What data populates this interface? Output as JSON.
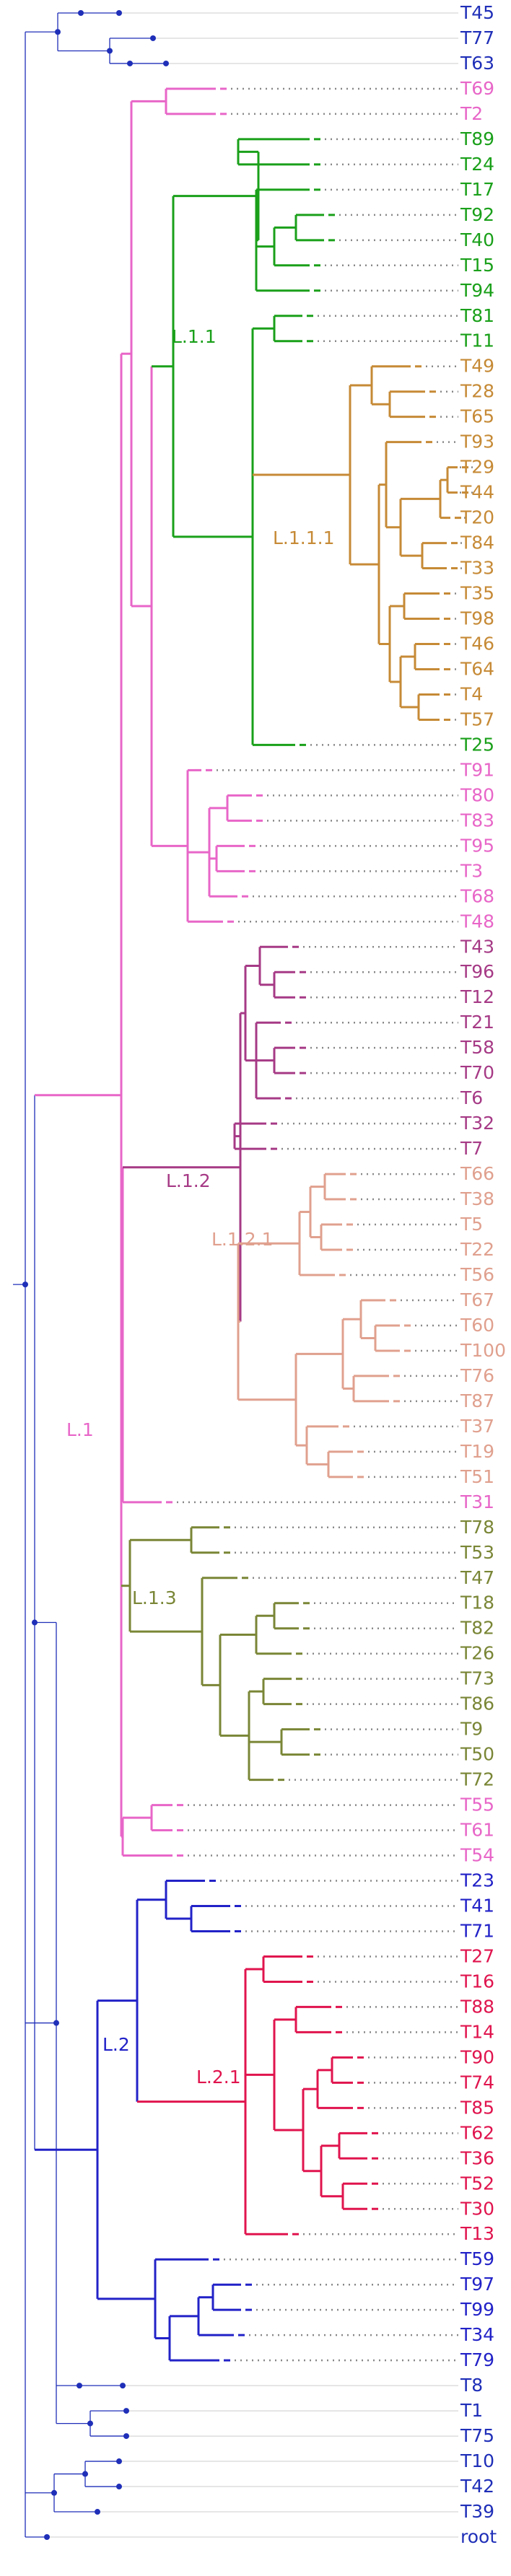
{
  "clade_colors": {
    "root": "#1f2fb8",
    "L.1": "#e866c8",
    "L.1.1": "#1aa01a",
    "L.1.1.1": "#c68a36",
    "L.1.2": "#a63a86",
    "L.1.2.1": "#e0a08e",
    "L.1.3": "#7a8636",
    "L.2": "#2222c8",
    "L.2.1": "#e0144e"
  },
  "clade_labels": [
    "L.1",
    "L.1.1",
    "L.1.1.1",
    "L.1.2",
    "L.1.2.1",
    "L.1.3",
    "L.2",
    "L.2.1"
  ],
  "tips": [
    {
      "name": "T45",
      "clade": "root"
    },
    {
      "name": "T77",
      "clade": "root"
    },
    {
      "name": "T63",
      "clade": "root"
    },
    {
      "name": "T69",
      "clade": "L.1"
    },
    {
      "name": "T2",
      "clade": "L.1"
    },
    {
      "name": "T89",
      "clade": "L.1.1"
    },
    {
      "name": "T24",
      "clade": "L.1.1"
    },
    {
      "name": "T17",
      "clade": "L.1.1"
    },
    {
      "name": "T92",
      "clade": "L.1.1"
    },
    {
      "name": "T40",
      "clade": "L.1.1"
    },
    {
      "name": "T15",
      "clade": "L.1.1"
    },
    {
      "name": "T94",
      "clade": "L.1.1"
    },
    {
      "name": "T81",
      "clade": "L.1.1"
    },
    {
      "name": "T11",
      "clade": "L.1.1"
    },
    {
      "name": "T49",
      "clade": "L.1.1.1"
    },
    {
      "name": "T28",
      "clade": "L.1.1.1"
    },
    {
      "name": "T65",
      "clade": "L.1.1.1"
    },
    {
      "name": "T93",
      "clade": "L.1.1.1"
    },
    {
      "name": "T29",
      "clade": "L.1.1.1"
    },
    {
      "name": "T44",
      "clade": "L.1.1.1"
    },
    {
      "name": "T20",
      "clade": "L.1.1.1"
    },
    {
      "name": "T84",
      "clade": "L.1.1.1"
    },
    {
      "name": "T33",
      "clade": "L.1.1.1"
    },
    {
      "name": "T35",
      "clade": "L.1.1.1"
    },
    {
      "name": "T98",
      "clade": "L.1.1.1"
    },
    {
      "name": "T46",
      "clade": "L.1.1.1"
    },
    {
      "name": "T64",
      "clade": "L.1.1.1"
    },
    {
      "name": "T4",
      "clade": "L.1.1.1"
    },
    {
      "name": "T57",
      "clade": "L.1.1.1"
    },
    {
      "name": "T25",
      "clade": "L.1.1"
    },
    {
      "name": "T91",
      "clade": "L.1"
    },
    {
      "name": "T80",
      "clade": "L.1"
    },
    {
      "name": "T83",
      "clade": "L.1"
    },
    {
      "name": "T95",
      "clade": "L.1"
    },
    {
      "name": "T3",
      "clade": "L.1"
    },
    {
      "name": "T68",
      "clade": "L.1"
    },
    {
      "name": "T48",
      "clade": "L.1"
    },
    {
      "name": "T43",
      "clade": "L.1.2"
    },
    {
      "name": "T96",
      "clade": "L.1.2"
    },
    {
      "name": "T12",
      "clade": "L.1.2"
    },
    {
      "name": "T21",
      "clade": "L.1.2"
    },
    {
      "name": "T58",
      "clade": "L.1.2"
    },
    {
      "name": "T70",
      "clade": "L.1.2"
    },
    {
      "name": "T6",
      "clade": "L.1.2"
    },
    {
      "name": "T32",
      "clade": "L.1.2"
    },
    {
      "name": "T7",
      "clade": "L.1.2"
    },
    {
      "name": "T66",
      "clade": "L.1.2.1"
    },
    {
      "name": "T38",
      "clade": "L.1.2.1"
    },
    {
      "name": "T5",
      "clade": "L.1.2.1"
    },
    {
      "name": "T22",
      "clade": "L.1.2.1"
    },
    {
      "name": "T56",
      "clade": "L.1.2.1"
    },
    {
      "name": "T67",
      "clade": "L.1.2.1"
    },
    {
      "name": "T60",
      "clade": "L.1.2.1"
    },
    {
      "name": "T100",
      "clade": "L.1.2.1"
    },
    {
      "name": "T76",
      "clade": "L.1.2.1"
    },
    {
      "name": "T87",
      "clade": "L.1.2.1"
    },
    {
      "name": "T37",
      "clade": "L.1.2.1"
    },
    {
      "name": "T19",
      "clade": "L.1.2.1"
    },
    {
      "name": "T51",
      "clade": "L.1.2.1"
    },
    {
      "name": "T31",
      "clade": "L.1"
    },
    {
      "name": "T78",
      "clade": "L.1.3"
    },
    {
      "name": "T53",
      "clade": "L.1.3"
    },
    {
      "name": "T47",
      "clade": "L.1.3"
    },
    {
      "name": "T18",
      "clade": "L.1.3"
    },
    {
      "name": "T82",
      "clade": "L.1.3"
    },
    {
      "name": "T26",
      "clade": "L.1.3"
    },
    {
      "name": "T73",
      "clade": "L.1.3"
    },
    {
      "name": "T86",
      "clade": "L.1.3"
    },
    {
      "name": "T9",
      "clade": "L.1.3"
    },
    {
      "name": "T50",
      "clade": "L.1.3"
    },
    {
      "name": "T72",
      "clade": "L.1.3"
    },
    {
      "name": "T55",
      "clade": "L.1"
    },
    {
      "name": "T61",
      "clade": "L.1"
    },
    {
      "name": "T54",
      "clade": "L.1"
    },
    {
      "name": "T23",
      "clade": "L.2"
    },
    {
      "name": "T41",
      "clade": "L.2"
    },
    {
      "name": "T71",
      "clade": "L.2"
    },
    {
      "name": "T27",
      "clade": "L.2.1"
    },
    {
      "name": "T16",
      "clade": "L.2.1"
    },
    {
      "name": "T88",
      "clade": "L.2.1"
    },
    {
      "name": "T14",
      "clade": "L.2.1"
    },
    {
      "name": "T90",
      "clade": "L.2.1"
    },
    {
      "name": "T74",
      "clade": "L.2.1"
    },
    {
      "name": "T85",
      "clade": "L.2.1"
    },
    {
      "name": "T62",
      "clade": "L.2.1"
    },
    {
      "name": "T36",
      "clade": "L.2.1"
    },
    {
      "name": "T52",
      "clade": "L.2.1"
    },
    {
      "name": "T30",
      "clade": "L.2.1"
    },
    {
      "name": "T13",
      "clade": "L.2.1"
    },
    {
      "name": "T59",
      "clade": "L.2"
    },
    {
      "name": "T97",
      "clade": "L.2"
    },
    {
      "name": "T99",
      "clade": "L.2"
    },
    {
      "name": "T34",
      "clade": "L.2"
    },
    {
      "name": "T79",
      "clade": "L.2"
    },
    {
      "name": "T8",
      "clade": "root"
    },
    {
      "name": "T1",
      "clade": "root"
    },
    {
      "name": "T75",
      "clade": "root"
    },
    {
      "name": "T10",
      "clade": "root"
    },
    {
      "name": "T42",
      "clade": "root"
    },
    {
      "name": "T39",
      "clade": "root"
    },
    {
      "name": "root",
      "clade": "root"
    }
  ]
}
